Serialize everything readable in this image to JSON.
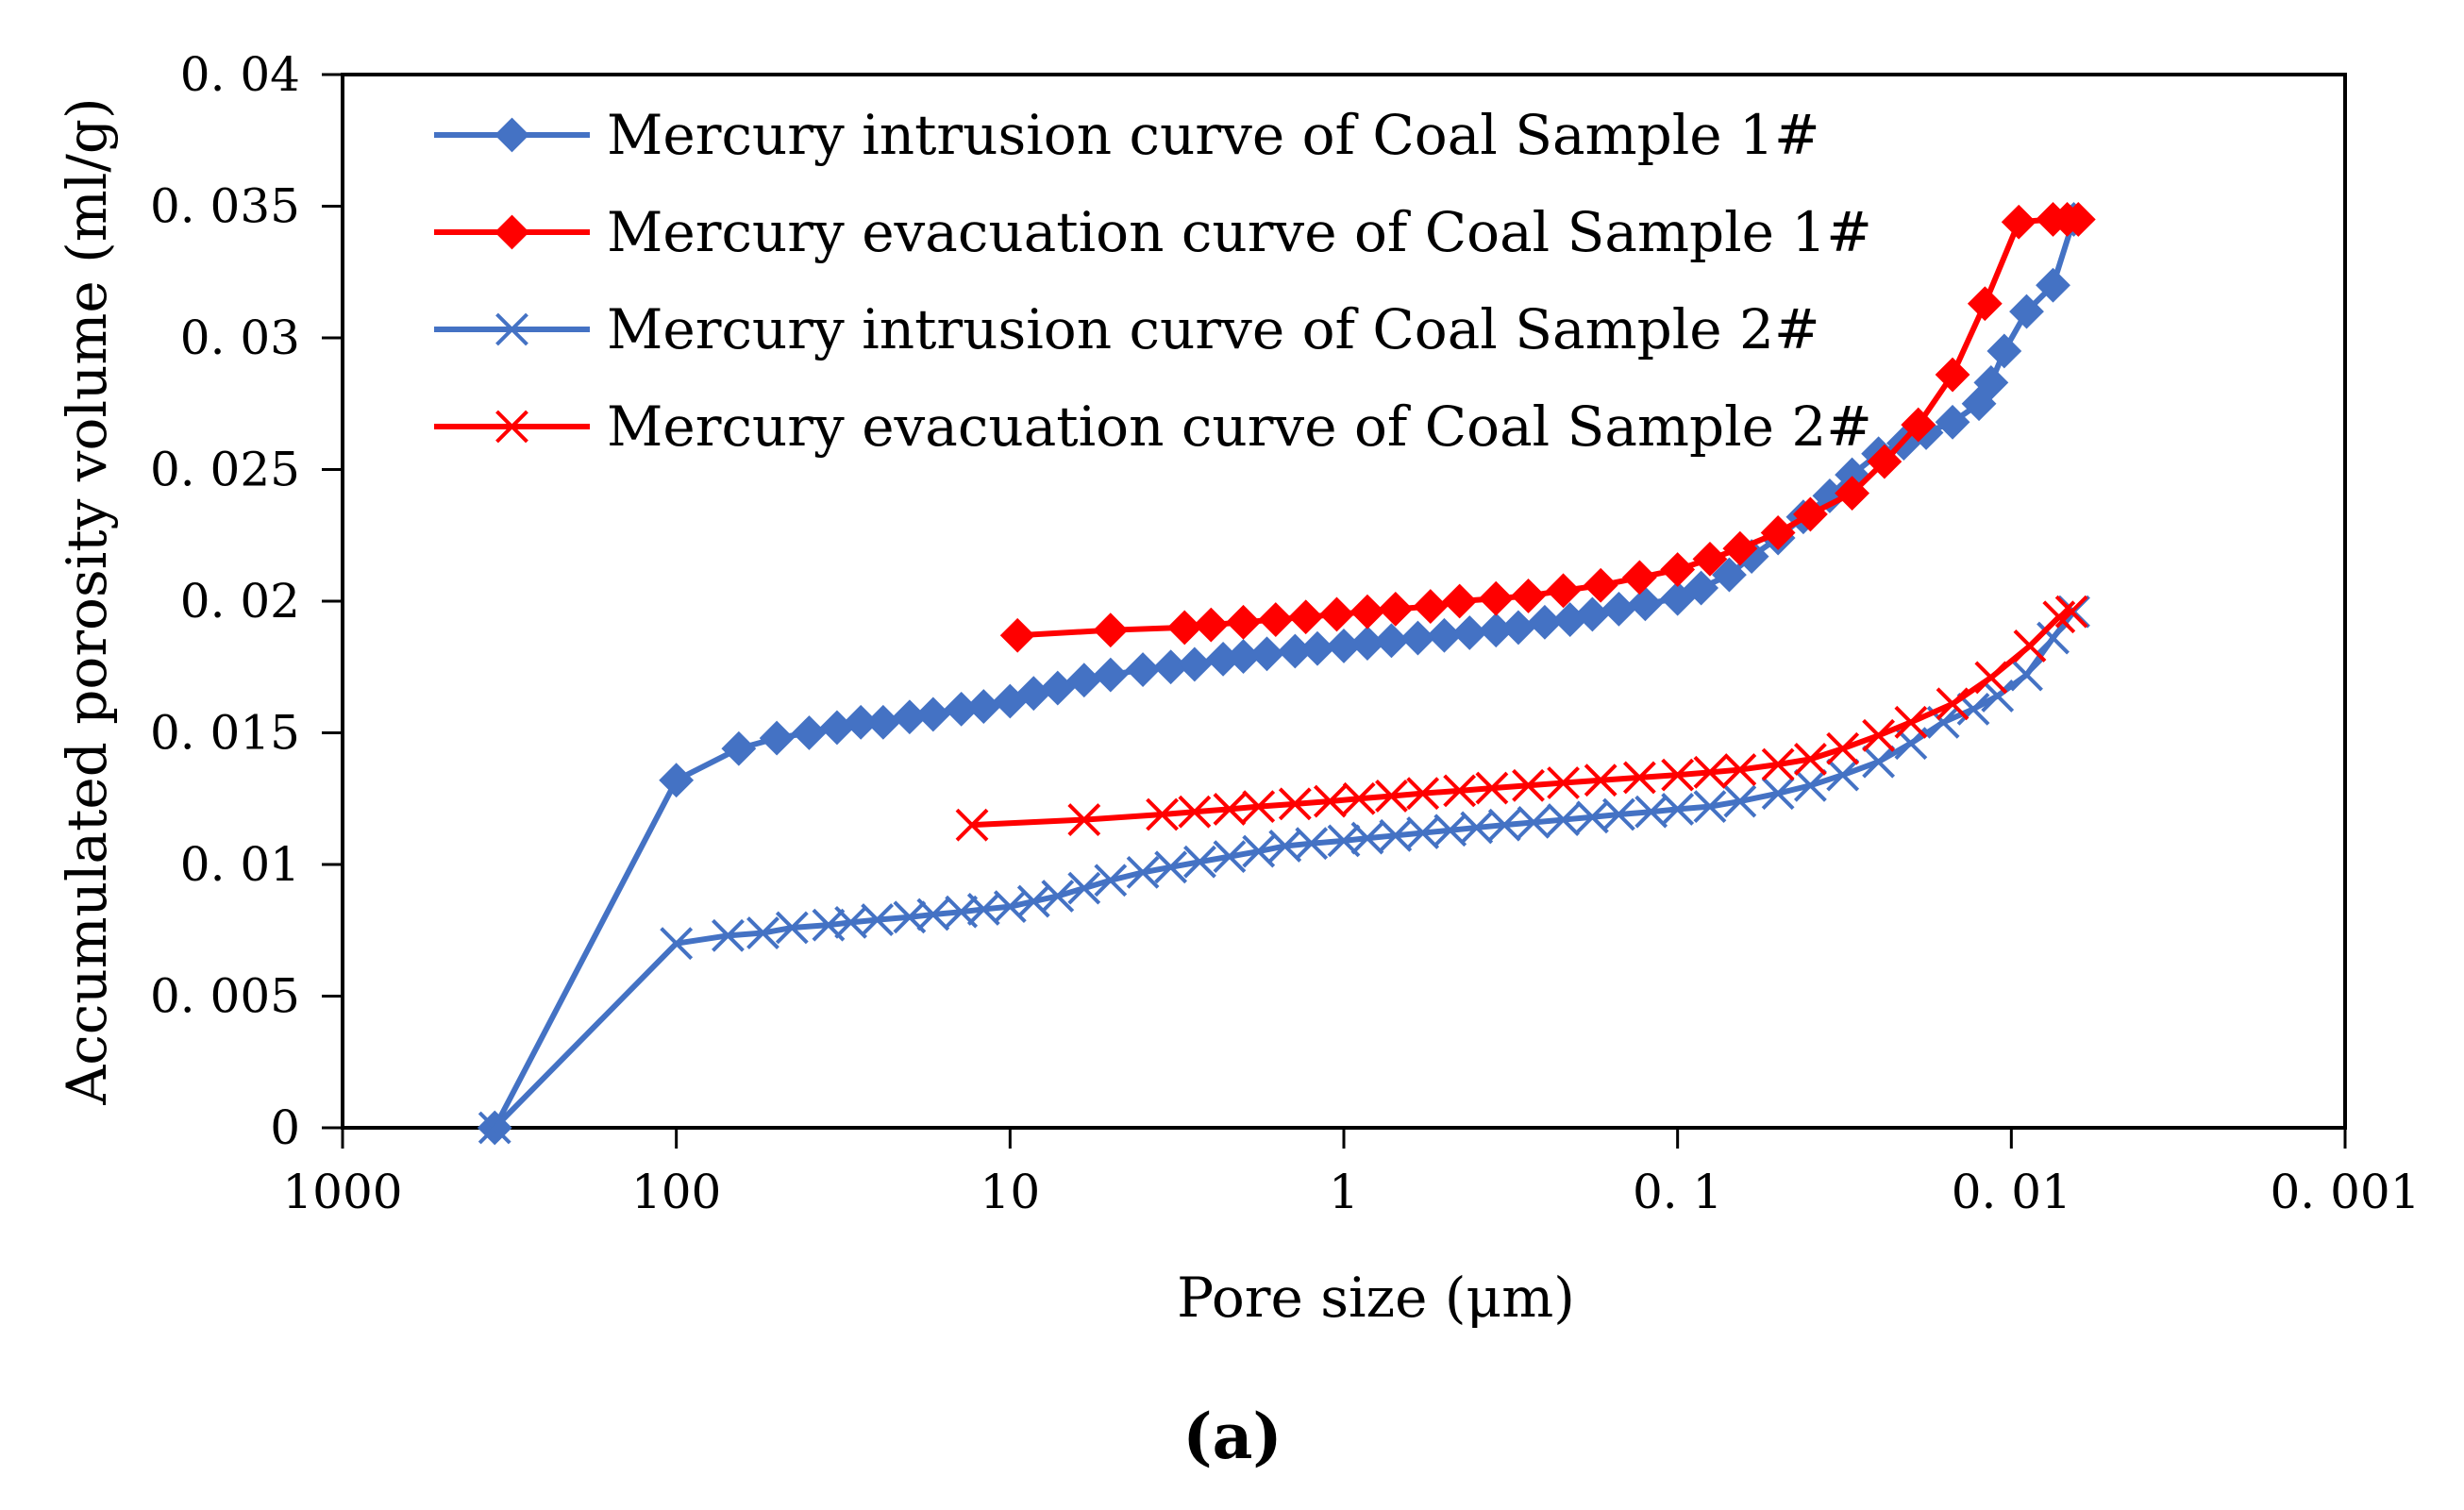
{
  "chart_data": {
    "type": "line",
    "title": "",
    "xlabel": "Pore size (μm)",
    "ylabel": "Accumulated porosity volume (ml/g)",
    "x_scale": "log",
    "x_reversed": true,
    "xlim": [
      1000,
      0.001
    ],
    "ylim": [
      0,
      0.04
    ],
    "x_tick_labels": [
      "1000",
      "100",
      "10",
      "1",
      "0. 1",
      "0. 01",
      "0. 001"
    ],
    "y_tick_labels": [
      "0",
      "0. 005",
      "0. 01",
      "0. 015",
      "0. 02",
      "0. 025",
      "0. 03",
      "0. 035",
      "0. 04"
    ],
    "grid": false,
    "legend_position": "top-left inside",
    "panel_label": "(a)",
    "colors": {
      "blue": "#4472C4",
      "red": "#FF0000",
      "axis": "#000000"
    },
    "series": [
      {
        "name": "Mercury intrusion curve of Coal Sample 1#",
        "color": "#4472C4",
        "marker": "diamond",
        "x": [
          350,
          100,
          65,
          50,
          40,
          33,
          28,
          24,
          20,
          17,
          14,
          12,
          10,
          8.5,
          7.2,
          6,
          5,
          4,
          3.3,
          2.8,
          2.3,
          2,
          1.7,
          1.4,
          1.2,
          1,
          0.85,
          0.72,
          0.6,
          0.5,
          0.42,
          0.35,
          0.3,
          0.25,
          0.21,
          0.18,
          0.15,
          0.125,
          0.1,
          0.085,
          0.07,
          0.06,
          0.05,
          0.042,
          0.035,
          0.03,
          0.025,
          0.021,
          0.018,
          0.015,
          0.0125,
          0.0115,
          0.0105,
          0.009,
          0.0075,
          0.0065
        ],
        "values": [
          0.0,
          0.0132,
          0.0144,
          0.0148,
          0.015,
          0.0152,
          0.0154,
          0.0154,
          0.0156,
          0.0157,
          0.0159,
          0.016,
          0.0162,
          0.0165,
          0.0167,
          0.017,
          0.0172,
          0.0174,
          0.0175,
          0.0176,
          0.0178,
          0.0179,
          0.018,
          0.0181,
          0.0182,
          0.0183,
          0.0184,
          0.0185,
          0.0186,
          0.0187,
          0.0188,
          0.0189,
          0.019,
          0.0192,
          0.0193,
          0.0195,
          0.0197,
          0.0199,
          0.0201,
          0.0205,
          0.021,
          0.0217,
          0.0224,
          0.0232,
          0.024,
          0.0248,
          0.0256,
          0.026,
          0.0264,
          0.0268,
          0.0275,
          0.0283,
          0.0295,
          0.031,
          0.032,
          0.0345
        ]
      },
      {
        "name": "Mercury evacuation curve of Coal Sample 1#",
        "color": "#FF0000",
        "marker": "diamond",
        "x": [
          9.5,
          5,
          3,
          2.5,
          2,
          1.6,
          1.3,
          1.05,
          0.85,
          0.7,
          0.55,
          0.45,
          0.35,
          0.28,
          0.22,
          0.17,
          0.13,
          0.1,
          0.08,
          0.065,
          0.05,
          0.04,
          0.03,
          0.024,
          0.019,
          0.015,
          0.012,
          0.0095,
          0.0075,
          0.0068,
          0.0063
        ],
        "values": [
          0.0187,
          0.0189,
          0.019,
          0.0191,
          0.0192,
          0.0193,
          0.0194,
          0.0195,
          0.0196,
          0.0197,
          0.0198,
          0.02,
          0.0201,
          0.0202,
          0.0204,
          0.0206,
          0.0209,
          0.0212,
          0.0216,
          0.022,
          0.0226,
          0.0233,
          0.0241,
          0.0253,
          0.0267,
          0.0286,
          0.0313,
          0.0344,
          0.0345,
          0.0345,
          0.0345
        ]
      },
      {
        "name": "Mercury intrusion curve of Coal Sample 2#",
        "color": "#4472C4",
        "marker": "x",
        "x": [
          350,
          100,
          70,
          55,
          45,
          35,
          30,
          25,
          20,
          17,
          14,
          12,
          10,
          8.5,
          7.2,
          6,
          5,
          4,
          3.3,
          2.7,
          2.2,
          1.8,
          1.5,
          1.25,
          1,
          0.85,
          0.7,
          0.58,
          0.48,
          0.4,
          0.33,
          0.27,
          0.22,
          0.18,
          0.15,
          0.12,
          0.1,
          0.08,
          0.065,
          0.05,
          0.04,
          0.032,
          0.025,
          0.02,
          0.016,
          0.013,
          0.011,
          0.009,
          0.0075,
          0.0065
        ],
        "values": [
          0.0,
          0.007,
          0.0073,
          0.0074,
          0.0076,
          0.0077,
          0.0078,
          0.0079,
          0.008,
          0.0081,
          0.0082,
          0.0083,
          0.0084,
          0.0086,
          0.0088,
          0.0091,
          0.0094,
          0.0097,
          0.0099,
          0.0101,
          0.0103,
          0.0105,
          0.0107,
          0.0108,
          0.0109,
          0.011,
          0.0111,
          0.0112,
          0.0113,
          0.0114,
          0.0115,
          0.0116,
          0.0117,
          0.0118,
          0.0119,
          0.012,
          0.0121,
          0.0122,
          0.0124,
          0.0127,
          0.013,
          0.0134,
          0.0139,
          0.0146,
          0.0154,
          0.0159,
          0.0164,
          0.0172,
          0.0186,
          0.0196
        ]
      },
      {
        "name": "Mercury evacuation curve of Coal Sample 2#",
        "color": "#FF0000",
        "marker": "x",
        "x": [
          13,
          6,
          3.5,
          2.8,
          2.2,
          1.8,
          1.4,
          1.1,
          0.9,
          0.72,
          0.58,
          0.45,
          0.36,
          0.28,
          0.22,
          0.17,
          0.13,
          0.1,
          0.08,
          0.065,
          0.05,
          0.04,
          0.032,
          0.025,
          0.02,
          0.015,
          0.0115,
          0.0088,
          0.0072,
          0.0066
        ],
        "values": [
          0.0115,
          0.0117,
          0.0119,
          0.012,
          0.0121,
          0.0122,
          0.0123,
          0.0124,
          0.0125,
          0.0126,
          0.0127,
          0.0128,
          0.0129,
          0.013,
          0.0131,
          0.0132,
          0.0133,
          0.0134,
          0.0135,
          0.0136,
          0.0138,
          0.014,
          0.0144,
          0.0149,
          0.0154,
          0.0161,
          0.0171,
          0.0183,
          0.0194,
          0.0196
        ]
      }
    ]
  }
}
